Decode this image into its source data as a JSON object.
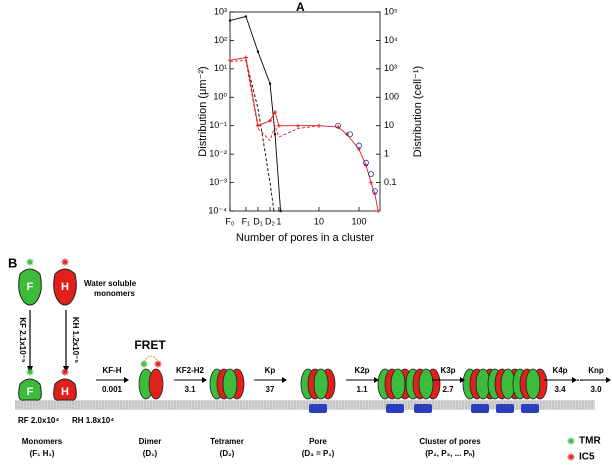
{
  "chart_data": {
    "type": "line",
    "panel": "A",
    "ylabel": "Distribution (μm⁻²)",
    "y2label": "Distribution (cell⁻¹)",
    "xlabel": "Number of pores in a cluster",
    "xscale": "log",
    "yscale": "log",
    "xlim": [
      0.06,
      335
    ],
    "xticks": [
      {
        "value": 0.06,
        "label": "F₀"
      },
      {
        "value": 0.15,
        "label": "F₁"
      },
      {
        "value": 0.3,
        "label": "D₁"
      },
      {
        "value": 0.6,
        "label": "D₂"
      },
      1,
      10,
      100
    ],
    "ylim": [
      0.0001,
      1000
    ],
    "yticks": [
      {
        "value": 1000,
        "label": "10³"
      },
      {
        "value": 100,
        "label": "10²"
      },
      {
        "value": 10,
        "label": "10¹"
      },
      {
        "value": 1,
        "label": "10⁰"
      },
      {
        "value": 0.1,
        "label": "10⁻¹"
      },
      {
        "value": 0.01,
        "label": "10⁻²"
      },
      {
        "value": 0.001,
        "label": "10⁻³"
      },
      {
        "value": 0.0001,
        "label": "10⁻⁴"
      }
    ],
    "y2lim": [
      0.01,
      100000
    ],
    "y2ticks": [
      {
        "value": 100000,
        "label": "10⁵"
      },
      {
        "value": 10000,
        "label": "10⁴"
      },
      {
        "value": 1000,
        "label": "10³"
      },
      100,
      10,
      1,
      0.1
    ],
    "series": [
      {
        "color": "#000000",
        "dashed": false,
        "marker": "dot",
        "x": [
          0.06,
          0.15,
          0.3,
          0.6,
          0.8,
          1.1
        ],
        "values": [
          500,
          700,
          40,
          3,
          0.05,
          0.0001
        ]
      },
      {
        "color": "#000000",
        "dashed": true,
        "marker": "none",
        "x": [
          0.15,
          0.3,
          0.6,
          0.75
        ],
        "values": [
          20,
          0.4,
          0.001,
          0.0001
        ]
      },
      {
        "color": "#e0201a",
        "dashed": false,
        "marker": "plus",
        "x": [
          0.06,
          0.15,
          0.3,
          0.6,
          0.8,
          1,
          3,
          10,
          30,
          50,
          100,
          150,
          200,
          250,
          300
        ],
        "values": [
          20,
          25,
          0.1,
          0.15,
          0.3,
          0.1,
          0.1,
          0.1,
          0.09,
          0.05,
          0.015,
          0.004,
          0.001,
          0.0004,
          0.0001
        ]
      },
      {
        "color": "#e0201a",
        "dashed": true,
        "marker": "none",
        "x": [
          0.06,
          0.15,
          0.3,
          0.6,
          0.8,
          1,
          3,
          10
        ],
        "values": [
          18,
          20,
          0.08,
          0.03,
          0.1,
          0.04,
          0.08,
          0.1
        ]
      },
      {
        "color": "#3030b0",
        "dashed": false,
        "marker": "circle",
        "scatter": true,
        "x": [
          30,
          60,
          100,
          150,
          200,
          250
        ],
        "values": [
          0.1,
          0.05,
          0.02,
          0.005,
          0.002,
          0.0005
        ]
      }
    ]
  },
  "panel_b": {
    "label": "B",
    "water": [
      "Water soluble",
      "monomers"
    ],
    "fret": "FRET",
    "monomer_letters": [
      "F",
      "H",
      "F",
      "H"
    ],
    "kf": "KF 2.1x10⁻⁵",
    "kh": "KH 1.2x10⁻⁵",
    "rf": "RF 2.0x10⁴",
    "rh": "RH 1.8x10⁴",
    "steps": [
      {
        "k": "KF-H",
        "v": "0.001"
      },
      {
        "k": "KF2-H2",
        "v": "3.1"
      },
      {
        "k": "Kp",
        "v": "37"
      },
      {
        "k": "K2p",
        "v": "1.1"
      },
      {
        "k": "K3p",
        "v": "2.7"
      },
      {
        "k": "K4p",
        "v": "3.4"
      },
      {
        "k": "Knp",
        "v": "3.0"
      }
    ],
    "ellipsis": "...",
    "stages": [
      {
        "name": "Monomers",
        "sub": "(F₁  H₁)"
      },
      {
        "name": "Dimer",
        "sub": "(D₁)"
      },
      {
        "name": "Tetramer",
        "sub": "(D₂)"
      },
      {
        "name": "Pore",
        "sub": "(D₃ = P₁)"
      },
      {
        "name": "Cluster of pores",
        "sub": "(P₂, P₃, ... Pₙ)"
      }
    ],
    "legend": [
      "TMR",
      "IC5"
    ]
  }
}
